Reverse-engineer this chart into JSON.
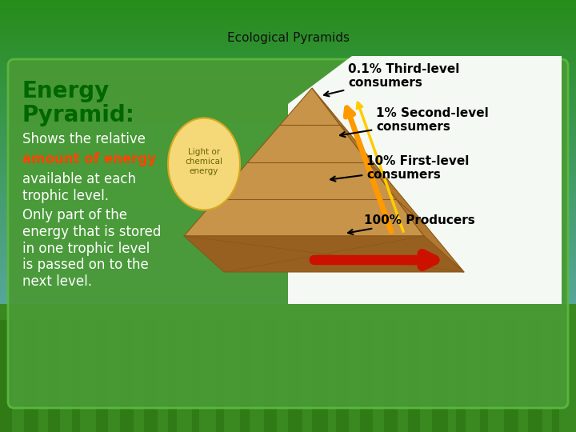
{
  "title": "Ecological Pyramids",
  "title_fontsize": 11,
  "title_color": "#111111",
  "bg_top_color": "#6ab0d0",
  "bg_bottom_color": "#3a8a20",
  "panel_color": "#4a9a35",
  "panel_border_color": "#5aba40",
  "heading_line1": "Energy",
  "heading_line2": "Pyramid:",
  "heading_color": "#006600",
  "heading_fontsize": 20,
  "body1_white": "Shows the relative",
  "body1_red": "amount of energy",
  "body1_rest": "available at each\ntrophic level.",
  "body2": "Only part of the\nenergy that is stored\nin one trophic level\nis passed on to the\nnext level.",
  "body_color": "#ffffff",
  "body_fontsize": 12,
  "label_fontsize": 11,
  "label_color": "#000000",
  "pyramid_face_color": "#c8944a",
  "pyramid_side_color": "#b07830",
  "pyramid_bottom_color": "#986020",
  "pyramid_edge_color": "#8a5818",
  "ellipse_color": "#f5d878",
  "ellipse_edge": "#d4a820",
  "white_panel_color": "#ffffff"
}
